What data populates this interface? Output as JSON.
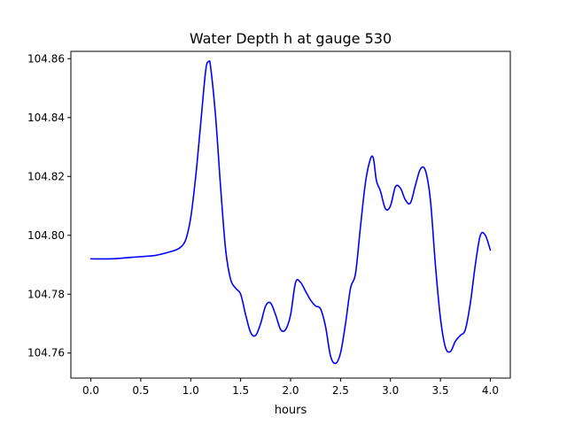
{
  "chart_data": {
    "type": "line",
    "title": "Water Depth h at gauge 530",
    "xlabel": "hours",
    "ylabel": "",
    "xlim": [
      -0.2,
      4.2
    ],
    "ylim": [
      104.7515,
      104.8625
    ],
    "xticks": [
      0.0,
      0.5,
      1.0,
      1.5,
      2.0,
      2.5,
      3.0,
      3.5,
      4.0
    ],
    "xtick_labels": [
      "0.0",
      "0.5",
      "1.0",
      "1.5",
      "2.0",
      "2.5",
      "3.0",
      "3.5",
      "4.0"
    ],
    "yticks": [
      104.76,
      104.78,
      104.8,
      104.82,
      104.84,
      104.86
    ],
    "ytick_labels": [
      "104.76",
      "104.78",
      "104.80",
      "104.82",
      "104.84",
      "104.86"
    ],
    "grid": false,
    "legend": "none",
    "series": [
      {
        "color": "#0000ff",
        "x": [
          0.0,
          0.2,
          0.4,
          0.6,
          0.65,
          0.75,
          0.85,
          0.9,
          0.95,
          1.0,
          1.05,
          1.1,
          1.15,
          1.18,
          1.2,
          1.25,
          1.3,
          1.35,
          1.4,
          1.45,
          1.5,
          1.55,
          1.6,
          1.65,
          1.7,
          1.75,
          1.8,
          1.85,
          1.9,
          1.95,
          2.0,
          2.05,
          2.1,
          2.15,
          2.2,
          2.25,
          2.3,
          2.35,
          2.4,
          2.45,
          2.5,
          2.55,
          2.6,
          2.65,
          2.7,
          2.75,
          2.8,
          2.83,
          2.86,
          2.9,
          2.95,
          3.0,
          3.05,
          3.1,
          3.15,
          3.2,
          3.25,
          3.3,
          3.35,
          3.4,
          3.45,
          3.5,
          3.55,
          3.6,
          3.65,
          3.7,
          3.75,
          3.8,
          3.85,
          3.9,
          3.95,
          4.0
        ],
        "y": [
          104.792,
          104.792,
          104.7925,
          104.793,
          104.7932,
          104.794,
          104.795,
          104.796,
          104.7985,
          104.806,
          104.82,
          104.838,
          104.856,
          104.859,
          104.857,
          104.84,
          104.816,
          104.795,
          104.785,
          104.782,
          104.78,
          104.773,
          104.767,
          104.766,
          104.77,
          104.776,
          104.777,
          104.773,
          104.768,
          104.768,
          104.773,
          104.784,
          104.784,
          104.781,
          104.778,
          104.776,
          104.775,
          104.769,
          104.759,
          104.7565,
          104.76,
          104.77,
          104.782,
          104.787,
          104.803,
          104.818,
          104.826,
          104.826,
          104.8185,
          104.815,
          104.809,
          104.81,
          104.8165,
          104.816,
          104.812,
          104.811,
          104.817,
          104.8225,
          104.822,
          104.812,
          104.79,
          104.772,
          104.762,
          104.7605,
          104.764,
          104.766,
          104.768,
          104.777,
          104.79,
          104.8,
          104.8,
          104.795
        ]
      }
    ]
  }
}
